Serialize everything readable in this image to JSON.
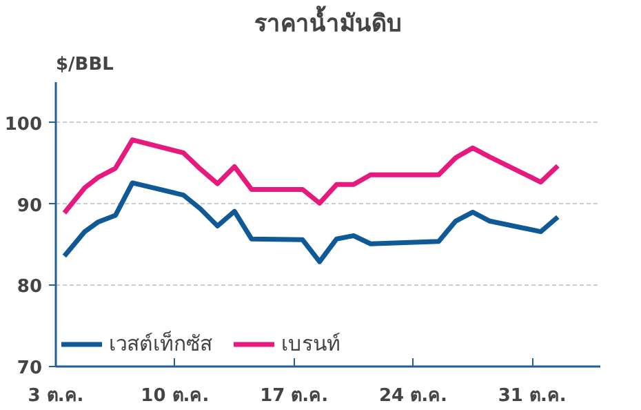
{
  "chart_data": {
    "type": "line",
    "title": "ราคาน้ำมันดิบ",
    "ylabel": "$/BBL",
    "x": [
      3.5,
      4.7,
      5.5,
      6.5,
      7.5,
      10.5,
      11.5,
      12.5,
      13.5,
      14.5,
      17.5,
      18.5,
      19.5,
      20.5,
      21.5,
      25.5,
      26.5,
      27.5,
      28.5,
      31.5,
      32.5
    ],
    "series": [
      {
        "name": "เวสต์เท็กซัส",
        "color": "#0f5a96",
        "values": [
          83.6,
          86.6,
          87.8,
          88.6,
          92.6,
          91.1,
          89.4,
          87.3,
          89.1,
          85.7,
          85.6,
          82.9,
          85.7,
          86.1,
          85.1,
          85.4,
          87.9,
          89.0,
          87.9,
          86.6,
          88.4
        ]
      },
      {
        "name": "เบรนท์",
        "color": "#e5197e",
        "values": [
          88.9,
          92.0,
          93.3,
          94.4,
          97.9,
          96.3,
          94.3,
          92.5,
          94.6,
          91.8,
          91.8,
          90.1,
          92.4,
          92.4,
          93.6,
          93.6,
          95.7,
          96.9,
          95.8,
          92.7,
          94.7
        ]
      }
    ],
    "xlim": [
      3,
      35
    ],
    "xticks": [
      {
        "value": 3,
        "label": "3 ต.ค."
      },
      {
        "value": 10,
        "label": "10 ต.ค."
      },
      {
        "value": 17,
        "label": "17 ต.ค."
      },
      {
        "value": 24,
        "label": "24 ต.ค."
      },
      {
        "value": 31,
        "label": "31 ต.ค."
      }
    ],
    "ylim": [
      70,
      105
    ],
    "yticks": [
      70,
      80,
      90,
      100
    ],
    "grid": "y",
    "legend": "bottom left",
    "marker": "none",
    "line_style": "solid"
  }
}
